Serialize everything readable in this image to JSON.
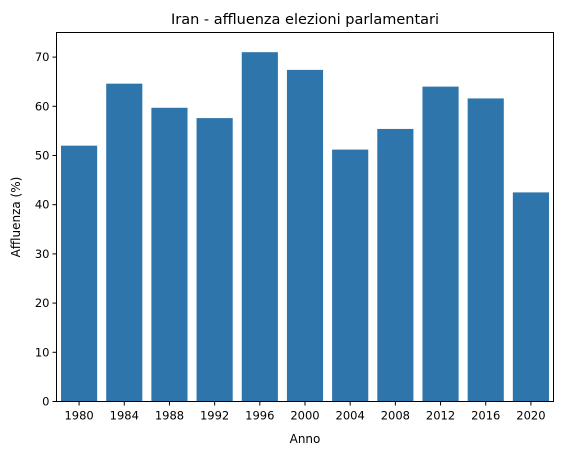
{
  "chart_data": {
    "type": "bar",
    "title": "Iran - affluenza elezioni parlamentari",
    "xlabel": "Anno",
    "ylabel": "Affluenza (%)",
    "categories": [
      "1980",
      "1984",
      "1988",
      "1992",
      "1996",
      "2000",
      "2004",
      "2008",
      "2012",
      "2016",
      "2020"
    ],
    "values": [
      52.0,
      64.6,
      59.7,
      57.6,
      71.0,
      67.4,
      51.2,
      55.4,
      64.0,
      61.6,
      42.5
    ],
    "ylim": [
      0,
      75
    ],
    "yticks": [
      0,
      10,
      20,
      30,
      40,
      50,
      60,
      70
    ],
    "grid": false,
    "bar_color": "#2e75ab"
  }
}
